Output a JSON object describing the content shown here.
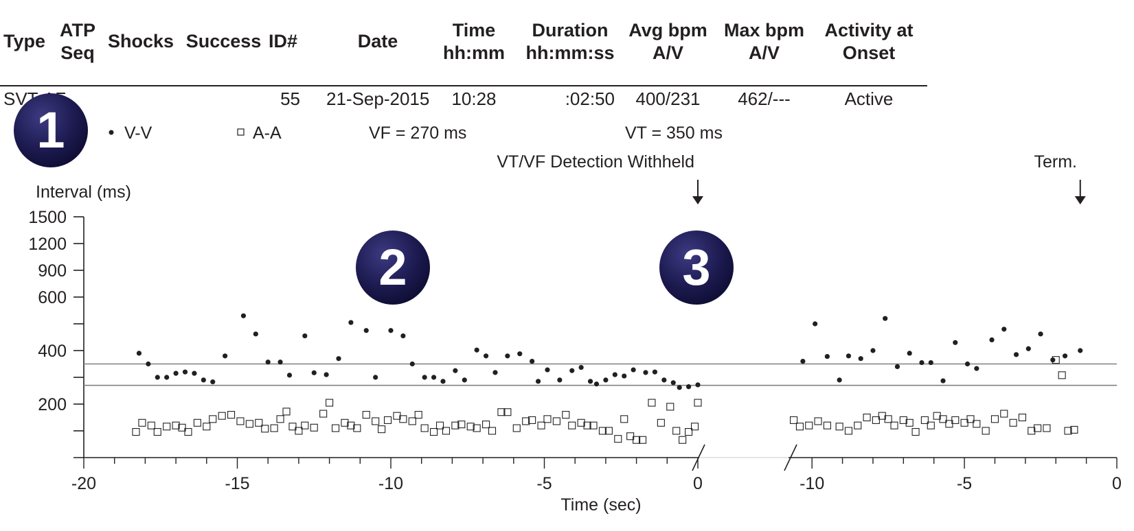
{
  "table": {
    "headers": [
      {
        "line1": "Type",
        "line2": ""
      },
      {
        "line1": "ATP",
        "line2": "Seq"
      },
      {
        "line1": "Shocks",
        "line2": ""
      },
      {
        "line1": "Success",
        "line2": ""
      },
      {
        "line1": "ID#",
        "line2": ""
      },
      {
        "line1": "Date",
        "line2": ""
      },
      {
        "line1": "Time",
        "line2": "hh:mm"
      },
      {
        "line1": "Duration",
        "line2": "hh:mm:ss"
      },
      {
        "line1": "Avg bpm",
        "line2": "A/V"
      },
      {
        "line1": "Max bpm",
        "line2": "A/V"
      },
      {
        "line1": "Activity at",
        "line2": "Onset"
      }
    ],
    "row": {
      "type": "SVT-AF",
      "id": "55",
      "date": "21-Sep-2015",
      "time": "10:28",
      "duration": ":02:50",
      "avg_bpm": "400/231",
      "max_bpm": "462/---",
      "activity": "Active"
    }
  },
  "badges": [
    "1",
    "2",
    "3"
  ],
  "colors": {
    "badge": "#1c1a4f",
    "ink": "#231f20",
    "threshold": "#808080"
  },
  "chart_data": {
    "type": "scatter",
    "legend": {
      "vv": "V-V",
      "aa": "A-A"
    },
    "thresholds": {
      "vf_label": "VF = 270 ms",
      "vt_label": "VT = 350 ms",
      "vf": 270,
      "vt": 350
    },
    "annotations": {
      "detection": "VT/VF Detection Withheld",
      "term": "Term."
    },
    "ylabel": "Interval (ms)",
    "xlabel": "Time (sec)",
    "yticks": [
      {
        "v": 1500,
        "label": "1500"
      },
      {
        "v": 1200,
        "label": "1200"
      },
      {
        "v": 900,
        "label": "900"
      },
      {
        "v": 600,
        "label": "600"
      },
      {
        "v": 500,
        "label": ""
      },
      {
        "v": 400,
        "label": "400"
      },
      {
        "v": 300,
        "label": ""
      },
      {
        "v": 200,
        "label": "200"
      },
      {
        "v": 150,
        "label": ""
      }
    ],
    "segments": [
      {
        "xlim": [
          -20,
          0
        ],
        "xticks": [
          "-20",
          "-15",
          "-10",
          "-5",
          "0"
        ]
      },
      {
        "xlim": [
          -10.5,
          0
        ],
        "xticks": [
          "-10",
          "-5",
          "0"
        ]
      }
    ],
    "series": [
      {
        "name": "V-V",
        "segments": [
          [
            [
              -18.2,
              390
            ],
            [
              -17.9,
              350
            ],
            [
              -17.6,
              300
            ],
            [
              -17.3,
              300
            ],
            [
              -17.0,
              315
            ],
            [
              -16.7,
              320
            ],
            [
              -16.4,
              315
            ],
            [
              -16.1,
              290
            ],
            [
              -15.8,
              283
            ],
            [
              -15.4,
              380
            ],
            [
              -14.8,
              530
            ],
            [
              -14.4,
              462
            ],
            [
              -14.0,
              357
            ],
            [
              -13.6,
              357
            ],
            [
              -13.3,
              308
            ],
            [
              -12.8,
              455
            ],
            [
              -12.5,
              317
            ],
            [
              -12.1,
              310
            ],
            [
              -11.7,
              370
            ],
            [
              -11.3,
              505
            ],
            [
              -10.8,
              475
            ],
            [
              -10.5,
              300
            ],
            [
              -10.0,
              475
            ],
            [
              -9.6,
              455
            ],
            [
              -9.3,
              350
            ],
            [
              -8.9,
              300
            ],
            [
              -8.6,
              300
            ],
            [
              -8.3,
              285
            ],
            [
              -7.9,
              325
            ],
            [
              -7.6,
              290
            ],
            [
              -7.2,
              402
            ],
            [
              -6.9,
              380
            ],
            [
              -6.6,
              318
            ],
            [
              -6.2,
              380
            ],
            [
              -5.8,
              388
            ],
            [
              -5.4,
              360
            ],
            [
              -5.2,
              285
            ],
            [
              -4.9,
              328
            ],
            [
              -4.5,
              290
            ],
            [
              -4.1,
              325
            ],
            [
              -3.8,
              337
            ],
            [
              -3.5,
              285
            ],
            [
              -3.3,
              275
            ],
            [
              -3.0,
              290
            ],
            [
              -2.7,
              310
            ],
            [
              -2.4,
              305
            ],
            [
              -2.1,
              328
            ],
            [
              -1.7,
              318
            ],
            [
              -1.4,
              320
            ],
            [
              -1.1,
              290
            ],
            [
              -0.8,
              280
            ],
            [
              -0.6,
              262
            ],
            [
              -0.3,
              265
            ],
            [
              0.0,
              272
            ]
          ],
          [
            [
              -10.3,
              360
            ],
            [
              -9.9,
              500
            ],
            [
              -9.5,
              378
            ],
            [
              -9.1,
              290
            ],
            [
              -8.8,
              380
            ],
            [
              -8.4,
              370
            ],
            [
              -8.0,
              400
            ],
            [
              -7.6,
              520
            ],
            [
              -7.2,
              340
            ],
            [
              -6.8,
              390
            ],
            [
              -6.4,
              355
            ],
            [
              -6.1,
              355
            ],
            [
              -5.7,
              287
            ],
            [
              -5.3,
              430
            ],
            [
              -4.9,
              350
            ],
            [
              -4.6,
              333
            ],
            [
              -4.1,
              440
            ],
            [
              -3.7,
              480
            ],
            [
              -3.3,
              385
            ],
            [
              -2.9,
              407
            ],
            [
              -2.5,
              462
            ],
            [
              -2.1,
              365
            ],
            [
              -1.7,
              380
            ],
            [
              -1.2,
              400
            ]
          ]
        ]
      },
      {
        "name": "A-A",
        "segments": [
          [
            [
              -18.3,
              148
            ],
            [
              -18.1,
              165
            ],
            [
              -17.8,
              160
            ],
            [
              -17.6,
              148
            ],
            [
              -17.3,
              158
            ],
            [
              -17.0,
              160
            ],
            [
              -16.8,
              156
            ],
            [
              -16.6,
              148
            ],
            [
              -16.3,
              165
            ],
            [
              -16.0,
              158
            ],
            [
              -15.8,
              172
            ],
            [
              -15.5,
              178
            ],
            [
              -15.2,
              180
            ],
            [
              -14.9,
              168
            ],
            [
              -14.6,
              163
            ],
            [
              -14.3,
              165
            ],
            [
              -14.1,
              154
            ],
            [
              -13.8,
              155
            ],
            [
              -13.6,
              172
            ],
            [
              -13.4,
              186
            ],
            [
              -13.2,
              158
            ],
            [
              -13.0,
              150
            ],
            [
              -12.8,
              160
            ],
            [
              -12.5,
              156
            ],
            [
              -12.2,
              182
            ],
            [
              -12.0,
              205
            ],
            [
              -11.8,
              155
            ],
            [
              -11.5,
              165
            ],
            [
              -11.3,
              160
            ],
            [
              -11.1,
              155
            ],
            [
              -10.8,
              180
            ],
            [
              -10.5,
              168
            ],
            [
              -10.3,
              153
            ],
            [
              -10.1,
              170
            ],
            [
              -9.8,
              178
            ],
            [
              -9.6,
              172
            ],
            [
              -9.3,
              168
            ],
            [
              -9.1,
              180
            ],
            [
              -8.9,
              155
            ],
            [
              -8.6,
              148
            ],
            [
              -8.4,
              160
            ],
            [
              -8.2,
              150
            ],
            [
              -7.9,
              160
            ],
            [
              -7.7,
              162
            ],
            [
              -7.4,
              158
            ],
            [
              -7.2,
              155
            ],
            [
              -6.9,
              162
            ],
            [
              -6.7,
              150
            ],
            [
              -6.4,
              185
            ],
            [
              -6.2,
              185
            ],
            [
              -5.9,
              155
            ],
            [
              -5.6,
              168
            ],
            [
              -5.4,
              170
            ],
            [
              -5.1,
              160
            ],
            [
              -4.9,
              172
            ],
            [
              -4.6,
              168
            ],
            [
              -4.3,
              180
            ],
            [
              -4.1,
              160
            ],
            [
              -3.8,
              165
            ],
            [
              -3.6,
              160
            ],
            [
              -3.4,
              160
            ],
            [
              -3.1,
              150
            ],
            [
              -2.9,
              150
            ],
            [
              -2.6,
              135
            ],
            [
              -2.4,
              172
            ],
            [
              -2.2,
              140
            ],
            [
              -2.0,
              133
            ],
            [
              -1.8,
              133
            ],
            [
              -1.5,
              205
            ],
            [
              -1.2,
              165
            ],
            [
              -0.9,
              195
            ],
            [
              -0.7,
              150
            ],
            [
              -0.5,
              133
            ],
            [
              -0.3,
              148
            ],
            [
              -0.1,
              158
            ],
            [
              0.0,
              205
            ]
          ],
          [
            [
              -10.6,
              170
            ],
            [
              -10.4,
              158
            ],
            [
              -10.1,
              160
            ],
            [
              -9.8,
              168
            ],
            [
              -9.5,
              160
            ],
            [
              -9.1,
              158
            ],
            [
              -8.8,
              150
            ],
            [
              -8.5,
              160
            ],
            [
              -8.2,
              175
            ],
            [
              -7.9,
              170
            ],
            [
              -7.7,
              178
            ],
            [
              -7.5,
              172
            ],
            [
              -7.3,
              160
            ],
            [
              -7.0,
              170
            ],
            [
              -6.8,
              165
            ],
            [
              -6.6,
              148
            ],
            [
              -6.3,
              170
            ],
            [
              -6.1,
              160
            ],
            [
              -5.9,
              178
            ],
            [
              -5.7,
              172
            ],
            [
              -5.5,
              163
            ],
            [
              -5.3,
              170
            ],
            [
              -5.0,
              165
            ],
            [
              -4.8,
              172
            ],
            [
              -4.6,
              163
            ],
            [
              -4.3,
              150
            ],
            [
              -4.0,
              172
            ],
            [
              -3.7,
              182
            ],
            [
              -3.4,
              165
            ],
            [
              -3.1,
              175
            ],
            [
              -2.8,
              150
            ],
            [
              -2.6,
              155
            ],
            [
              -2.3,
              155
            ],
            [
              -2.0,
              365
            ],
            [
              -1.8,
              308
            ],
            [
              -1.6,
              150
            ],
            [
              -1.4,
              152
            ]
          ]
        ]
      }
    ]
  }
}
